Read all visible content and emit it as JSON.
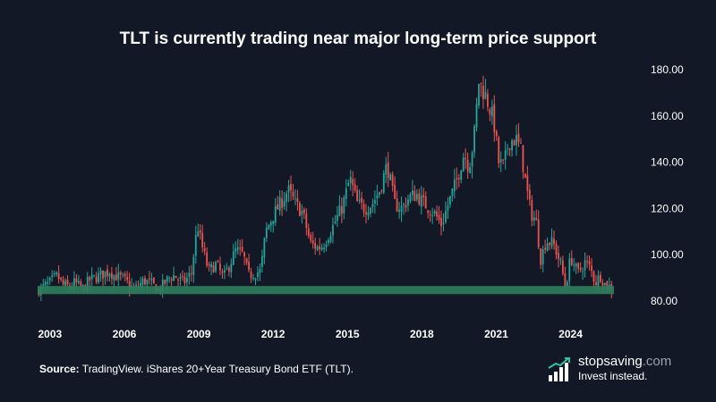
{
  "title": "TLT is currently trading near major long-term price support",
  "source": {
    "label": "Source:",
    "text": " TradingView. iShares 20+Year Treasury Bond ETF (TLT)."
  },
  "brand": {
    "name_part1": "stopsaving",
    "name_part2": ".com",
    "tagline": "Invest instead.",
    "icon": "bar-chart-logo-icon"
  },
  "colors": {
    "background": "#121826",
    "up_candle": "#26a69a",
    "down_candle": "#ef5350",
    "support_zone": "#2e7d5b"
  },
  "chart_data": {
    "type": "candlestick",
    "title": "TLT is currently trading near major long-term price support",
    "y_axis_position": "right",
    "y_ticks": [
      "180.00",
      "160.00",
      "140.00",
      "120.00",
      "100.00",
      "80.00"
    ],
    "y_tick_values": [
      180,
      160,
      140,
      120,
      100,
      80
    ],
    "ylim": [
      80,
      180
    ],
    "x_ticks": [
      "2003",
      "2006",
      "2009",
      "2012",
      "2015",
      "2018",
      "2021",
      "2024"
    ],
    "x_tick_values": [
      2003,
      2006,
      2009,
      2012,
      2015,
      2018,
      2021,
      2024
    ],
    "xlim": [
      2002.5,
      2025.75
    ],
    "support_zone": {
      "low": 83,
      "high": 86.5
    },
    "grid": false,
    "closes": [
      [
        2002.6,
        85
      ],
      [
        2003.0,
        88
      ],
      [
        2003.3,
        91
      ],
      [
        2003.5,
        87
      ],
      [
        2003.8,
        86
      ],
      [
        2004.0,
        88
      ],
      [
        2004.3,
        85
      ],
      [
        2004.6,
        89
      ],
      [
        2005.0,
        91
      ],
      [
        2005.4,
        93
      ],
      [
        2005.6,
        91
      ],
      [
        2005.9,
        90
      ],
      [
        2006.0,
        89
      ],
      [
        2006.4,
        85
      ],
      [
        2006.8,
        89
      ],
      [
        2007.0,
        88
      ],
      [
        2007.4,
        85
      ],
      [
        2007.8,
        90
      ],
      [
        2008.0,
        91
      ],
      [
        2008.4,
        88
      ],
      [
        2008.7,
        92
      ],
      [
        2008.95,
        113
      ],
      [
        2009.1,
        105
      ],
      [
        2009.4,
        93
      ],
      [
        2009.7,
        96
      ],
      [
        2010.0,
        90
      ],
      [
        2010.5,
        102
      ],
      [
        2010.8,
        100
      ],
      [
        2011.0,
        91
      ],
      [
        2011.5,
        93
      ],
      [
        2011.7,
        110
      ],
      [
        2012.0,
        117
      ],
      [
        2012.4,
        124
      ],
      [
        2012.6,
        128
      ],
      [
        2012.9,
        122
      ],
      [
        2013.2,
        118
      ],
      [
        2013.5,
        105
      ],
      [
        2013.8,
        103
      ],
      [
        2014.0,
        104
      ],
      [
        2014.4,
        112
      ],
      [
        2014.8,
        121
      ],
      [
        2015.1,
        133
      ],
      [
        2015.4,
        122
      ],
      [
        2015.7,
        120
      ],
      [
        2016.0,
        122
      ],
      [
        2016.3,
        128
      ],
      [
        2016.6,
        139
      ],
      [
        2016.9,
        122
      ],
      [
        2017.2,
        120
      ],
      [
        2017.5,
        125
      ],
      [
        2017.8,
        126
      ],
      [
        2018.0,
        123
      ],
      [
        2018.5,
        118
      ],
      [
        2018.8,
        113
      ],
      [
        2019.0,
        120
      ],
      [
        2019.4,
        132
      ],
      [
        2019.7,
        144
      ],
      [
        2019.9,
        138
      ],
      [
        2020.1,
        150
      ],
      [
        2020.3,
        175
      ],
      [
        2020.6,
        168
      ],
      [
        2020.9,
        158
      ],
      [
        2021.1,
        140
      ],
      [
        2021.3,
        138
      ],
      [
        2021.5,
        149
      ],
      [
        2021.8,
        150
      ],
      [
        2022.0,
        145
      ],
      [
        2022.2,
        130
      ],
      [
        2022.4,
        118
      ],
      [
        2022.6,
        115
      ],
      [
        2022.8,
        98
      ],
      [
        2023.0,
        106
      ],
      [
        2023.3,
        105
      ],
      [
        2023.6,
        96
      ],
      [
        2023.8,
        86
      ],
      [
        2024.0,
        99
      ],
      [
        2024.3,
        92
      ],
      [
        2024.6,
        97
      ],
      [
        2024.8,
        94
      ],
      [
        2025.0,
        88
      ],
      [
        2025.2,
        91
      ],
      [
        2025.4,
        87
      ],
      [
        2025.6,
        86
      ]
    ]
  }
}
